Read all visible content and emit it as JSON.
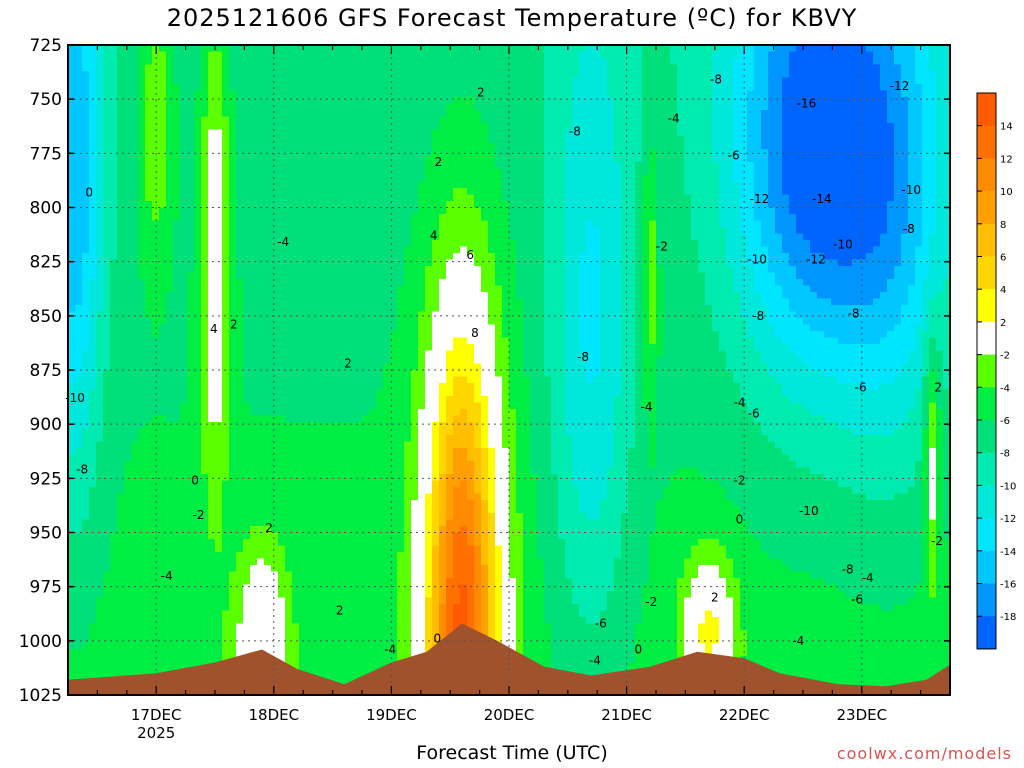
{
  "title": "2025121606 GFS Forecast Temperature (ºC) for KBVY",
  "credit": "coolwx.com/models",
  "chart_data": {
    "type": "heatmap",
    "title": "2025121606 GFS Forecast Temperature (ºC) for KBVY",
    "xlabel": "Forecast Time (UTC)",
    "ylabel": "",
    "y_axis": {
      "ticks": [
        725,
        750,
        775,
        800,
        825,
        850,
        875,
        900,
        925,
        950,
        975,
        1000,
        1025
      ],
      "range": [
        725,
        1025
      ],
      "inverted": true
    },
    "x_axis": {
      "ticks": [
        "17DEC",
        "18DEC",
        "19DEC",
        "20DEC",
        "21DEC",
        "22DEC",
        "23DEC"
      ],
      "year_label": "2025",
      "range_days": [
        16.25,
        23.75
      ]
    },
    "grid": true,
    "colorbar": {
      "ticks": [
        14,
        12,
        10,
        8,
        6,
        4,
        2,
        -2,
        -4,
        -6,
        -8,
        -10,
        -12,
        -14,
        -16,
        -18
      ],
      "bands": [
        {
          "range": [
            14,
            16
          ],
          "color": "#ff5a00"
        },
        {
          "range": [
            12,
            14
          ],
          "color": "#ff7000"
        },
        {
          "range": [
            10,
            12
          ],
          "color": "#ff8c00"
        },
        {
          "range": [
            8,
            10
          ],
          "color": "#ffa000"
        },
        {
          "range": [
            6,
            8
          ],
          "color": "#ffbe00"
        },
        {
          "range": [
            4,
            6
          ],
          "color": "#ffd700"
        },
        {
          "range": [
            2,
            4
          ],
          "color": "#ffff00"
        },
        {
          "range": [
            -2,
            2
          ],
          "color": "#ffffff"
        },
        {
          "range": [
            -4,
            -2
          ],
          "color": "#5aff00"
        },
        {
          "range": [
            -6,
            -4
          ],
          "color": "#00ee44"
        },
        {
          "range": [
            -8,
            -6
          ],
          "color": "#00e07a"
        },
        {
          "range": [
            -10,
            -8
          ],
          "color": "#00ebb0"
        },
        {
          "range": [
            -12,
            -10
          ],
          "color": "#00e8dc"
        },
        {
          "range": [
            -14,
            -12
          ],
          "color": "#00e6ff"
        },
        {
          "range": [
            -16,
            -14
          ],
          "color": "#00c8ff"
        },
        {
          "range": [
            -18,
            -16
          ],
          "color": "#0096ff"
        },
        {
          "range": [
            -20,
            -18
          ],
          "color": "#0064ff"
        }
      ]
    },
    "contour_labels": [
      {
        "text": "0",
        "day": 16.43,
        "p": 793
      },
      {
        "text": "4",
        "day": 17.49,
        "p": 856
      },
      {
        "text": "2",
        "day": 17.66,
        "p": 854
      },
      {
        "text": "-10",
        "day": 16.31,
        "p": 888
      },
      {
        "text": "-8",
        "day": 16.37,
        "p": 921
      },
      {
        "text": "0",
        "day": 17.33,
        "p": 926
      },
      {
        "text": "-2",
        "day": 17.36,
        "p": 942
      },
      {
        "text": "-4",
        "day": 17.09,
        "p": 970
      },
      {
        "text": "2",
        "day": 17.96,
        "p": 948
      },
      {
        "text": "-4",
        "day": 18.08,
        "p": 816
      },
      {
        "text": "2",
        "day": 18.56,
        "p": 986
      },
      {
        "text": "2",
        "day": 18.63,
        "p": 872
      },
      {
        "text": "-4",
        "day": 18.99,
        "p": 1004
      },
      {
        "text": "4",
        "day": 19.36,
        "p": 813
      },
      {
        "text": "2",
        "day": 19.4,
        "p": 779
      },
      {
        "text": "6",
        "day": 19.67,
        "p": 822
      },
      {
        "text": "8",
        "day": 19.71,
        "p": 858
      },
      {
        "text": "2",
        "day": 19.76,
        "p": 747
      },
      {
        "text": "0",
        "day": 19.39,
        "p": 999
      },
      {
        "text": "-8",
        "day": 20.56,
        "p": 765
      },
      {
        "text": "-8",
        "day": 20.63,
        "p": 869
      },
      {
        "text": "-6",
        "day": 20.78,
        "p": 992
      },
      {
        "text": "-4",
        "day": 20.73,
        "p": 1009
      },
      {
        "text": "-4",
        "day": 21.4,
        "p": 759
      },
      {
        "text": "-2",
        "day": 21.3,
        "p": 818
      },
      {
        "text": "-4",
        "day": 21.17,
        "p": 892
      },
      {
        "text": "-2",
        "day": 21.21,
        "p": 982
      },
      {
        "text": "0",
        "day": 21.1,
        "p": 1004
      },
      {
        "text": "-8",
        "day": 21.76,
        "p": 741
      },
      {
        "text": "-6",
        "day": 21.91,
        "p": 776
      },
      {
        "text": "-12",
        "day": 22.13,
        "p": 796
      },
      {
        "text": "-10",
        "day": 22.11,
        "p": 824
      },
      {
        "text": "-8",
        "day": 22.12,
        "p": 850
      },
      {
        "text": "-4",
        "day": 21.96,
        "p": 890
      },
      {
        "text": "-6",
        "day": 22.08,
        "p": 895
      },
      {
        "text": "-2",
        "day": 21.96,
        "p": 926
      },
      {
        "text": "0",
        "day": 21.96,
        "p": 944
      },
      {
        "text": "2",
        "day": 21.75,
        "p": 980
      },
      {
        "text": "-4",
        "day": 22.46,
        "p": 1000
      },
      {
        "text": "-16",
        "day": 22.53,
        "p": 752
      },
      {
        "text": "-14",
        "day": 22.66,
        "p": 796
      },
      {
        "text": "-12",
        "day": 22.61,
        "p": 824
      },
      {
        "text": "-10",
        "day": 22.84,
        "p": 817
      },
      {
        "text": "-8",
        "day": 22.93,
        "p": 849
      },
      {
        "text": "-6",
        "day": 22.99,
        "p": 883
      },
      {
        "text": "-10",
        "day": 22.55,
        "p": 940
      },
      {
        "text": "-8",
        "day": 22.88,
        "p": 967
      },
      {
        "text": "-6",
        "day": 22.96,
        "p": 981
      },
      {
        "text": "-4",
        "day": 23.05,
        "p": 971
      },
      {
        "text": "-12",
        "day": 23.32,
        "p": 744
      },
      {
        "text": "-10",
        "day": 23.42,
        "p": 792
      },
      {
        "text": "-8",
        "day": 23.4,
        "p": 810
      },
      {
        "text": "2",
        "day": 23.65,
        "p": 883
      },
      {
        "text": "-2",
        "day": 23.64,
        "p": 954
      }
    ]
  }
}
